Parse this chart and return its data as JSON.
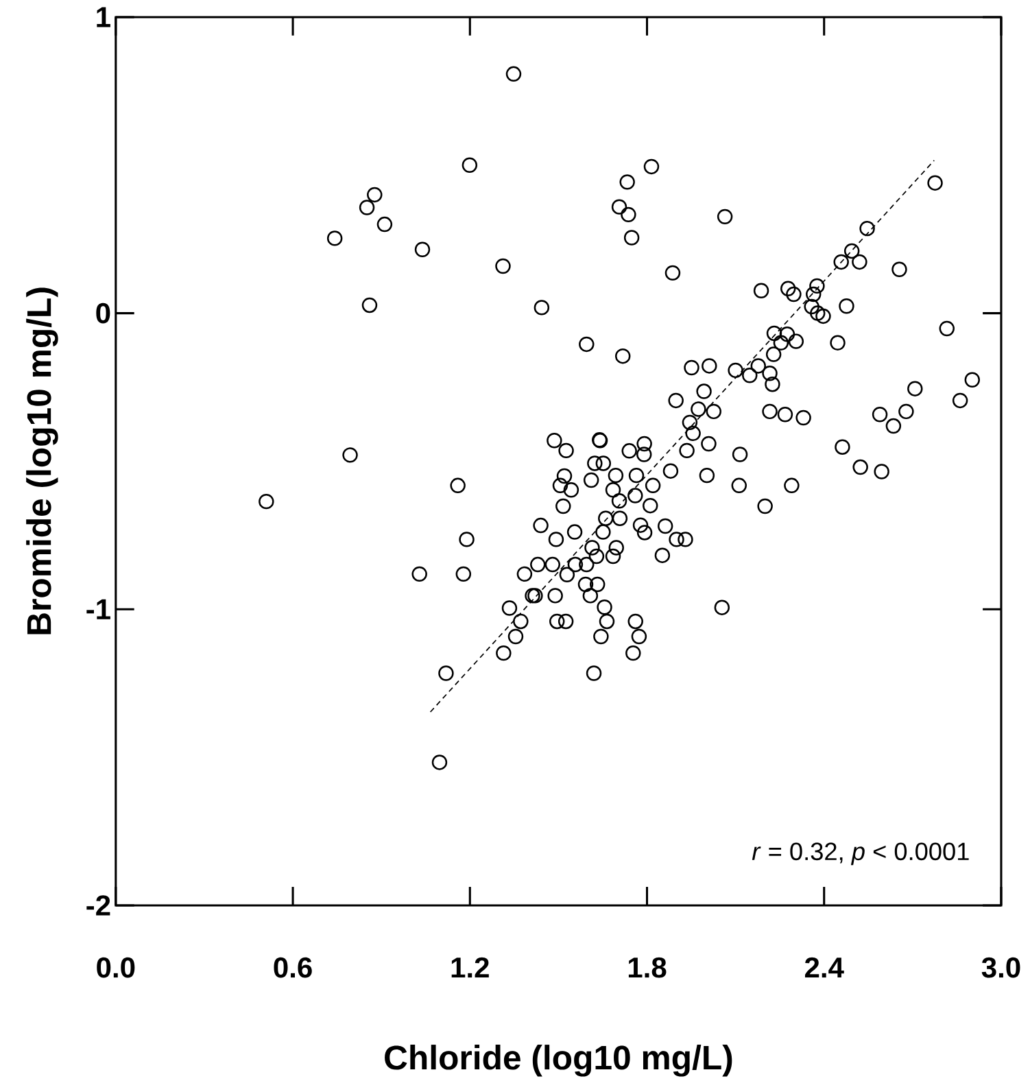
{
  "chart_data": {
    "type": "scatter",
    "xlabel": "Chloride (log10 mg/L)",
    "ylabel": "Bromide (log10 mg/L)",
    "xlim": [
      0,
      3
    ],
    "ylim": [
      -2,
      1
    ],
    "xticks": [
      {
        "value": 0,
        "label": "0.0"
      },
      0.6,
      1.2,
      1.8,
      2.4,
      {
        "value": 3,
        "label": "3.0"
      }
    ],
    "yticks": [
      -2,
      -1,
      0,
      1
    ],
    "annotations": [
      "*r* = 0.32, *p* < 0.0001"
    ],
    "series": [
      {
        "color": "#000000",
        "marker": "circle",
        "x": [
          1.348,
          1.199,
          0.877,
          0.851,
          0.911,
          0.742,
          1.039,
          1.312,
          0.86,
          1.443,
          1.815,
          1.733,
          1.706,
          1.737,
          1.748,
          2.064,
          1.887,
          2.776,
          2.546,
          2.494,
          2.458,
          2.52,
          2.655,
          2.187,
          2.278,
          2.297,
          2.376,
          2.364,
          2.358,
          2.476,
          2.378,
          2.397,
          2.816,
          2.446,
          1.595,
          1.718,
          2.231,
          2.275,
          2.254,
          2.305,
          2.229,
          1.951,
          2.011,
          2.1,
          2.177,
          2.148,
          2.216,
          2.225,
          2.902,
          2.708,
          2.861,
          1.993,
          1.898,
          1.974,
          2.026,
          2.216,
          2.268,
          2.33,
          2.589,
          2.678,
          2.635,
          1.945,
          1.956,
          2.462,
          1.639,
          2.523,
          2.595,
          2.115,
          2.112,
          2.29,
          2.2,
          2.003,
          2.009,
          1.935,
          1.88,
          2.054,
          1.862,
          1.9,
          1.93,
          1.852,
          1.82,
          1.811,
          1.791,
          1.79,
          1.74,
          1.764,
          1.694,
          1.685,
          1.706,
          1.76,
          1.708,
          1.778,
          1.792,
          1.651,
          1.66,
          1.623,
          1.652,
          1.641,
          1.611,
          1.52,
          1.506,
          1.543,
          1.516,
          1.486,
          1.526,
          1.44,
          1.492,
          1.555,
          1.614,
          1.696,
          1.685,
          1.629,
          1.595,
          1.557,
          1.48,
          1.43,
          1.529,
          1.592,
          1.632,
          1.608,
          1.489,
          1.421,
          1.656,
          1.664,
          1.644,
          1.761,
          1.773,
          1.753,
          1.62,
          1.495,
          1.525,
          0.794,
          0.51,
          1.159,
          1.189,
          1.029,
          1.178,
          1.119,
          1.097,
          1.385,
          1.412,
          1.334,
          1.372,
          1.355,
          1.314
        ],
        "values": [
          0.808,
          0.5,
          0.4,
          0.357,
          0.3,
          0.253,
          0.215,
          0.159,
          0.027,
          0.019,
          0.495,
          0.443,
          0.359,
          0.333,
          0.255,
          0.326,
          0.136,
          0.44,
          0.286,
          0.21,
          0.173,
          0.173,
          0.148,
          0.076,
          0.083,
          0.064,
          0.092,
          0.064,
          0.022,
          0.024,
          0.0,
          -0.01,
          -0.052,
          -0.1,
          -0.105,
          -0.145,
          -0.068,
          -0.071,
          -0.1,
          -0.095,
          -0.139,
          -0.184,
          -0.178,
          -0.193,
          -0.178,
          -0.21,
          -0.203,
          -0.24,
          -0.225,
          -0.255,
          -0.295,
          -0.264,
          -0.295,
          -0.324,
          -0.332,
          -0.332,
          -0.342,
          -0.353,
          -0.342,
          -0.332,
          -0.381,
          -0.369,
          -0.406,
          -0.452,
          -0.428,
          -0.52,
          -0.535,
          -0.477,
          -0.582,
          -0.582,
          -0.652,
          -0.548,
          -0.441,
          -0.464,
          -0.533,
          -0.994,
          -0.719,
          -0.764,
          -0.764,
          -0.818,
          -0.582,
          -0.65,
          -0.441,
          -0.477,
          -0.465,
          -0.548,
          -0.548,
          -0.597,
          -0.634,
          -0.616,
          -0.693,
          -0.716,
          -0.741,
          -0.739,
          -0.693,
          -0.507,
          -0.507,
          -0.43,
          -0.564,
          -0.55,
          -0.582,
          -0.597,
          -0.652,
          -0.43,
          -0.464,
          -0.717,
          -0.764,
          -0.739,
          -0.792,
          -0.792,
          -0.821,
          -0.821,
          -0.849,
          -0.849,
          -0.849,
          -0.849,
          -0.883,
          -0.916,
          -0.916,
          -0.954,
          -0.954,
          -0.954,
          -0.993,
          -1.041,
          -1.092,
          -1.041,
          -1.092,
          -1.148,
          -1.216,
          -1.041,
          -1.041,
          -0.479,
          -0.636,
          -0.582,
          -0.764,
          -0.881,
          -0.881,
          -1.216,
          -1.517,
          -0.881,
          -0.954,
          -0.996,
          -1.041,
          -1.092,
          -1.148
        ]
      },
      {
        "type": "line",
        "color": "#000000",
        "line_style": "dashed",
        "marker": "none",
        "x": [
          1.066,
          2.773
        ],
        "values": [
          -1.347,
          0.516
        ]
      }
    ]
  }
}
